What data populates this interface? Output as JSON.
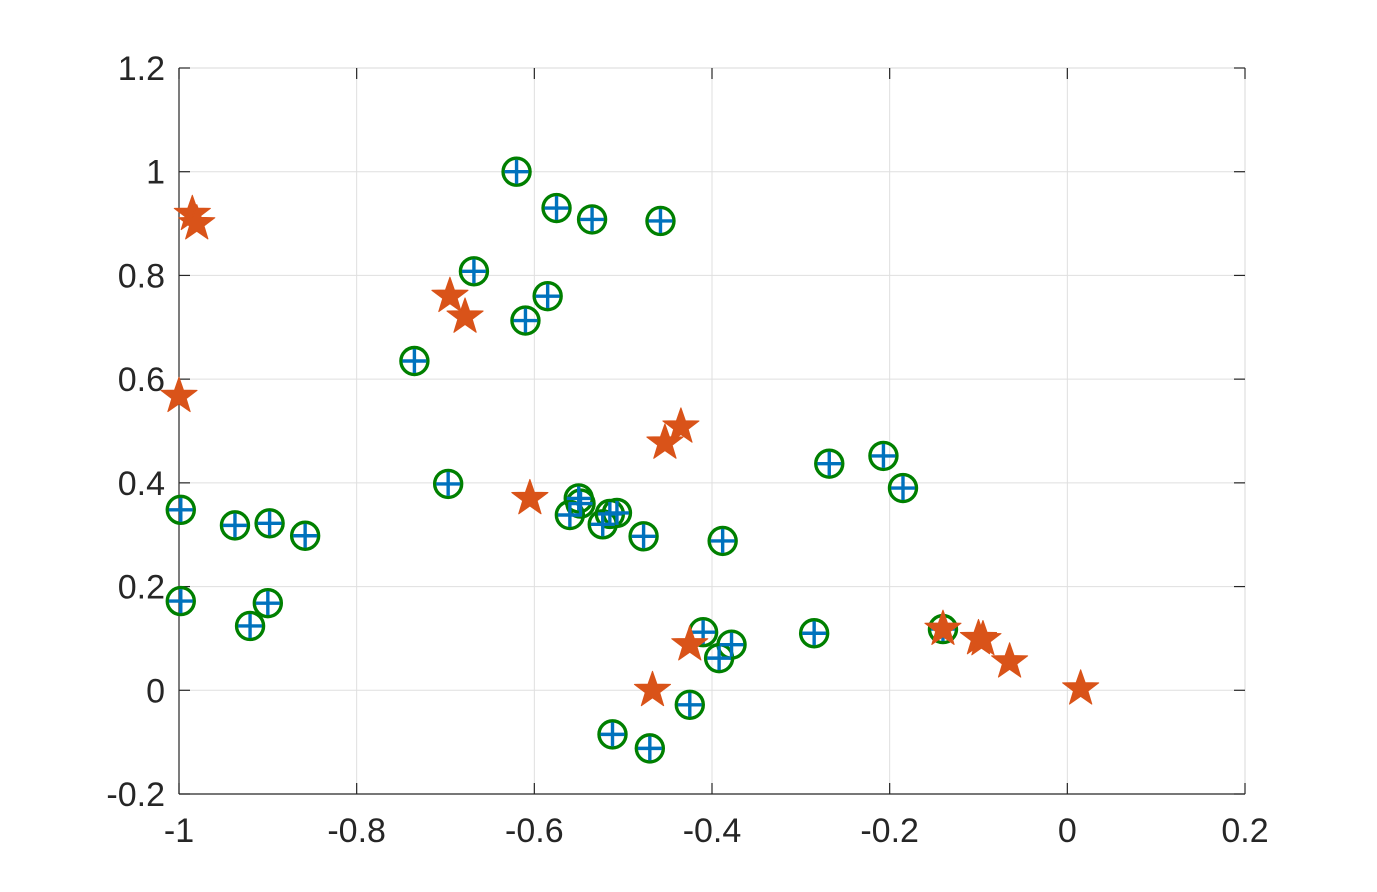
{
  "chart_data": {
    "type": "scatter",
    "title": "",
    "xlabel": "",
    "ylabel": "",
    "xlim": [
      -1,
      0.2
    ],
    "ylim": [
      -0.2,
      1.2
    ],
    "grid": true,
    "xticks": [
      {
        "value": -1,
        "label": "-1"
      },
      {
        "value": -0.8,
        "label": "-0.8"
      },
      {
        "value": -0.6,
        "label": "-0.6"
      },
      {
        "value": -0.4,
        "label": "-0.4"
      },
      {
        "value": -0.2,
        "label": "-0.2"
      },
      {
        "value": 0,
        "label": "0"
      },
      {
        "value": 0.2,
        "label": "0.2"
      }
    ],
    "yticks": [
      {
        "value": -0.2,
        "label": "-0.2"
      },
      {
        "value": 0,
        "label": "0"
      },
      {
        "value": 0.2,
        "label": "0.2"
      },
      {
        "value": 0.4,
        "label": "0.4"
      },
      {
        "value": 0.6,
        "label": "0.6"
      },
      {
        "value": 0.8,
        "label": "0.8"
      },
      {
        "value": 1,
        "label": "1"
      },
      {
        "value": 1.2,
        "label": "1.2"
      }
    ],
    "series": [
      {
        "marker": "circle",
        "color": "#008000",
        "points": [
          [
            -0.62,
            1.0
          ],
          [
            -0.575,
            0.93
          ],
          [
            -0.535,
            0.908
          ],
          [
            -0.458,
            0.905
          ],
          [
            -0.668,
            0.808
          ],
          [
            -0.585,
            0.76
          ],
          [
            -0.61,
            0.713
          ],
          [
            -0.735,
            0.635
          ],
          [
            -0.697,
            0.398
          ],
          [
            -0.55,
            0.37
          ],
          [
            -0.548,
            0.36
          ],
          [
            -0.56,
            0.338
          ],
          [
            -0.523,
            0.32
          ],
          [
            -0.515,
            0.34
          ],
          [
            -0.507,
            0.342
          ],
          [
            -0.477,
            0.297
          ],
          [
            -0.388,
            0.288
          ],
          [
            -0.268,
            0.437
          ],
          [
            -0.207,
            0.452
          ],
          [
            -0.185,
            0.39
          ],
          [
            -0.998,
            0.348
          ],
          [
            -0.937,
            0.318
          ],
          [
            -0.898,
            0.322
          ],
          [
            -0.858,
            0.298
          ],
          [
            -0.998,
            0.172
          ],
          [
            -0.92,
            0.124
          ],
          [
            -0.9,
            0.168
          ],
          [
            -0.41,
            0.112
          ],
          [
            -0.378,
            0.088
          ],
          [
            -0.392,
            0.062
          ],
          [
            -0.285,
            0.11
          ],
          [
            -0.14,
            0.118
          ],
          [
            -0.425,
            -0.028
          ],
          [
            -0.512,
            -0.085
          ],
          [
            -0.47,
            -0.112
          ]
        ]
      },
      {
        "marker": "plus",
        "color": "#0072BD",
        "points": [
          [
            -0.62,
            1.0
          ],
          [
            -0.575,
            0.93
          ],
          [
            -0.535,
            0.908
          ],
          [
            -0.458,
            0.905
          ],
          [
            -0.668,
            0.808
          ],
          [
            -0.585,
            0.76
          ],
          [
            -0.61,
            0.713
          ],
          [
            -0.735,
            0.635
          ],
          [
            -0.697,
            0.398
          ],
          [
            -0.55,
            0.37
          ],
          [
            -0.548,
            0.36
          ],
          [
            -0.56,
            0.338
          ],
          [
            -0.523,
            0.32
          ],
          [
            -0.515,
            0.34
          ],
          [
            -0.507,
            0.342
          ],
          [
            -0.477,
            0.297
          ],
          [
            -0.388,
            0.288
          ],
          [
            -0.268,
            0.437
          ],
          [
            -0.207,
            0.452
          ],
          [
            -0.185,
            0.39
          ],
          [
            -0.998,
            0.348
          ],
          [
            -0.937,
            0.318
          ],
          [
            -0.898,
            0.322
          ],
          [
            -0.858,
            0.298
          ],
          [
            -0.998,
            0.172
          ],
          [
            -0.92,
            0.124
          ],
          [
            -0.9,
            0.168
          ],
          [
            -0.41,
            0.112
          ],
          [
            -0.378,
            0.088
          ],
          [
            -0.392,
            0.062
          ],
          [
            -0.285,
            0.11
          ],
          [
            -0.14,
            0.118
          ],
          [
            -0.425,
            -0.028
          ],
          [
            -0.512,
            -0.085
          ],
          [
            -0.47,
            -0.112
          ]
        ]
      },
      {
        "marker": "star",
        "color": "#D95319",
        "points": [
          [
            -0.985,
            0.918
          ],
          [
            -0.98,
            0.9
          ],
          [
            -0.695,
            0.76
          ],
          [
            -0.678,
            0.72
          ],
          [
            -1.0,
            0.567
          ],
          [
            -0.435,
            0.508
          ],
          [
            -0.453,
            0.477
          ],
          [
            -0.605,
            0.37
          ],
          [
            -0.14,
            0.118
          ],
          [
            -0.1,
            0.1
          ],
          [
            -0.095,
            0.098
          ],
          [
            -0.065,
            0.055
          ],
          [
            0.015,
            0.003
          ],
          [
            -0.467,
            0.0
          ],
          [
            -0.425,
            0.088
          ]
        ]
      }
    ]
  }
}
